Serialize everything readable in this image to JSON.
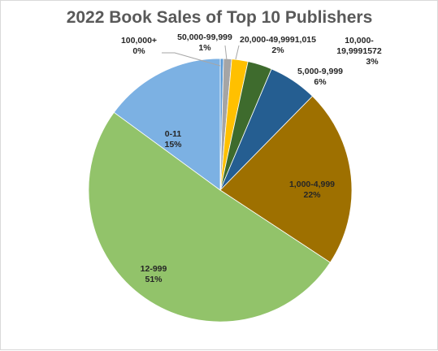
{
  "chart_data": {
    "type": "pie",
    "title": "2022 Book Sales of Top 10 Publishers",
    "slices": [
      {
        "category": "100,000+",
        "percent_label": "0%",
        "value": 0.4,
        "color": "#5b9bd5"
      },
      {
        "category": "50,000-99,999",
        "percent_label": "1%",
        "value": 1,
        "color": "#a5a5a5"
      },
      {
        "category": "20,000-49,9991,015",
        "percent_label": "2%",
        "value": 2,
        "color": "#ffc000"
      },
      {
        "category": "10,000-19,9991572",
        "percent_label": "3%",
        "value": 3,
        "color": "#3e6b2d"
      },
      {
        "category": "5,000-9,999",
        "percent_label": "6%",
        "value": 6,
        "color": "#255e91"
      },
      {
        "category": "1,000-4,999",
        "percent_label": "22%",
        "value": 22,
        "color": "#9e7000"
      },
      {
        "category": "12-999",
        "percent_label": "51%",
        "value": 51,
        "color": "#92c36a"
      },
      {
        "category": "0-11",
        "percent_label": "15%",
        "value": 15,
        "color": "#7cb1e3"
      }
    ]
  }
}
